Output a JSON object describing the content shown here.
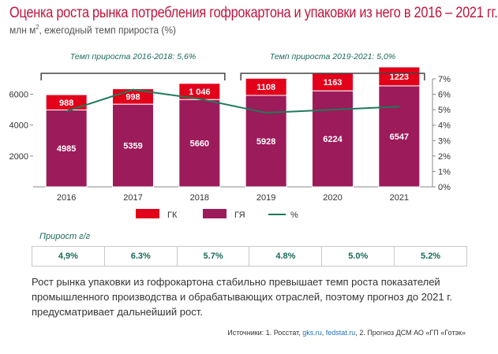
{
  "title": "Оценка роста рынка потребления гофрокартона и упаковки из него в 2016 – 2021 гг.",
  "subtitle": {
    "main": "млн м",
    "sup": "2",
    "rest": ", ежегодный темп прироста (%)"
  },
  "chart_data": {
    "type": "bar",
    "categories": [
      "2016",
      "2017",
      "2018",
      "2019",
      "2020",
      "2021"
    ],
    "series": [
      {
        "name": "ГЯ",
        "values": [
          4985,
          5359,
          5660,
          5928,
          6224,
          6547
        ],
        "labels": [
          "4985",
          "5359",
          "5660",
          "5928",
          "6224",
          "6547"
        ],
        "color": "#9c1b5a"
      },
      {
        "name": "ГК",
        "values": [
          988,
          998,
          1046,
          1108,
          1163,
          1223
        ],
        "labels": [
          "988",
          "998",
          "1 046",
          "1108",
          "1163",
          "1223"
        ],
        "color": "#e2001a"
      },
      {
        "name": "%",
        "type": "line",
        "values": [
          4.9,
          6.3,
          5.7,
          4.8,
          5.0,
          5.2
        ],
        "color": "#1e7a5a"
      }
    ],
    "ylim": [
      0,
      7000
    ],
    "y_ticks": [
      "2000",
      "4000",
      "6000"
    ],
    "y2lim": [
      0,
      7
    ],
    "y2_ticks": [
      "0%",
      "1%",
      "2%",
      "3%",
      "4%",
      "5%",
      "6%",
      "7%"
    ],
    "annotations": [
      {
        "text": "Темп прироста 2016-2018: 5,6%",
        "from": 0,
        "to": 2
      },
      {
        "text": "Темп прироста 2019-2021: 5,0%",
        "from": 3,
        "to": 5
      }
    ],
    "legend_position": "bottom"
  },
  "growth": {
    "label": "Прирост г/г",
    "values": [
      "4,9%",
      "6.3%",
      "5.7%",
      "4.8%",
      "5.0%",
      "5.2%"
    ]
  },
  "description": "Рост рынка упаковки из гофрокартона стабильно превышает темп роста показателей промышленного производства и обрабатывающих отраслей, поэтому прогноз до 2021 г. предусматривает дальнейший рост.",
  "sources": {
    "prefix": "Источники: 1. Росстат, ",
    "link1": "gks.ru",
    "sep": ", ",
    "link2": "fedstat.ru",
    "suffix": ",  2. Прогноз ДСМ АО «ГП «Готэк»"
  }
}
